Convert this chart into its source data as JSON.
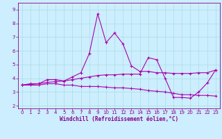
{
  "xlabel": "Windchill (Refroidissement éolien,°C)",
  "bg_color": "#cceeff",
  "line_color": "#aa00aa",
  "grid_color": "#aadddd",
  "x_ticks": [
    0,
    1,
    2,
    3,
    4,
    5,
    6,
    7,
    8,
    9,
    10,
    11,
    12,
    13,
    14,
    15,
    16,
    17,
    18,
    19,
    20,
    21,
    22,
    23
  ],
  "y_ticks": [
    2,
    3,
    4,
    5,
    6,
    7,
    8,
    9
  ],
  "ylim": [
    1.8,
    9.5
  ],
  "xlim": [
    -0.5,
    23.5
  ],
  "line1": {
    "x": [
      0,
      1,
      2,
      3,
      4,
      5,
      6,
      7,
      8,
      9,
      10,
      11,
      12,
      13,
      14,
      15,
      16,
      17,
      18,
      19,
      20,
      21,
      22,
      23
    ],
    "y": [
      3.5,
      3.6,
      3.6,
      3.9,
      3.9,
      3.8,
      4.1,
      4.4,
      5.8,
      8.7,
      6.6,
      7.3,
      6.5,
      4.9,
      4.5,
      4.5,
      4.4,
      4.4,
      4.35,
      4.35,
      4.35,
      4.4,
      4.4,
      4.6
    ]
  },
  "line2": {
    "x": [
      0,
      1,
      2,
      3,
      4,
      5,
      6,
      7,
      8,
      9,
      10,
      11,
      12,
      13,
      14,
      15,
      16,
      17,
      18,
      19,
      20,
      21,
      22,
      23
    ],
    "y": [
      3.5,
      3.5,
      3.5,
      3.6,
      3.6,
      3.5,
      3.5,
      3.4,
      3.4,
      3.4,
      3.35,
      3.3,
      3.3,
      3.25,
      3.2,
      3.1,
      3.05,
      3.0,
      2.9,
      2.8,
      2.8,
      2.75,
      2.75,
      2.7
    ]
  },
  "line3": {
    "x": [
      0,
      1,
      2,
      3,
      4,
      5,
      6,
      7,
      8,
      9,
      10,
      11,
      12,
      13,
      14,
      15,
      16,
      17,
      18,
      19,
      20,
      21,
      22,
      23
    ],
    "y": [
      3.5,
      3.55,
      3.6,
      3.7,
      3.75,
      3.8,
      3.9,
      4.0,
      4.1,
      4.2,
      4.25,
      4.25,
      4.3,
      4.3,
      4.3,
      5.5,
      5.35,
      4.0,
      2.6,
      2.6,
      2.55,
      3.0,
      3.65,
      4.6
    ]
  },
  "marker": "+",
  "markersize": 3,
  "linewidth": 0.8,
  "tick_fontsize": 5,
  "xlabel_fontsize": 5.5
}
